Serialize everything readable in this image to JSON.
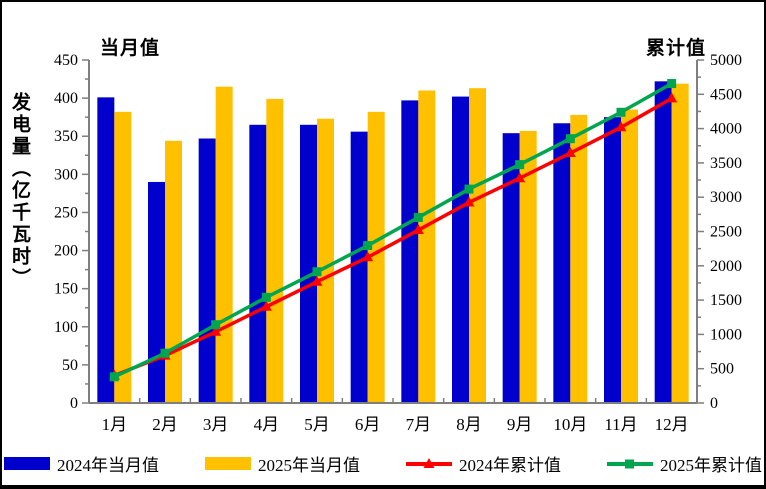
{
  "titles": {
    "left_axis_title": "当月值",
    "right_axis_title": "累计值",
    "y_axis_label": "发电量（亿千瓦时）"
  },
  "chart_data": {
    "type": "combo-bar-line",
    "title": "",
    "categories": [
      "1月",
      "2月",
      "3月",
      "4月",
      "5月",
      "6月",
      "7月",
      "8月",
      "9月",
      "10月",
      "11月",
      "12月"
    ],
    "series": [
      {
        "name": "2024年当月值",
        "kind": "bar",
        "axis": "left",
        "color": "#0000CC",
        "values": [
          401,
          290,
          347,
          365,
          365,
          356,
          397,
          402,
          354,
          367,
          375,
          422
        ]
      },
      {
        "name": "2025年当月值",
        "kind": "bar",
        "axis": "left",
        "color": "#FFC000",
        "values": [
          382,
          344,
          415,
          399,
          373,
          382,
          410,
          413,
          357,
          378,
          385,
          419
        ]
      },
      {
        "name": "2024年累计值",
        "kind": "line",
        "axis": "right",
        "color": "#FF0000",
        "marker": "triangle",
        "values": [
          401,
          691,
          1038,
          1403,
          1768,
          2124,
          2521,
          2923,
          3277,
          3644,
          4019,
          4441
        ]
      },
      {
        "name": "2025年累计值",
        "kind": "line",
        "axis": "right",
        "color": "#00A550",
        "marker": "square",
        "values": [
          382,
          726,
          1141,
          1540,
          1913,
          2295,
          2705,
          3118,
          3475,
          3853,
          4238,
          4657
        ]
      }
    ],
    "left_axis": {
      "title": "当月值",
      "min": 0,
      "max": 450,
      "major_step": 50,
      "minor_step": 25,
      "tick_labels": [
        0,
        50,
        100,
        150,
        200,
        250,
        300,
        350,
        400,
        450
      ]
    },
    "right_axis": {
      "title": "累计值",
      "min": 0,
      "max": 5000,
      "major_step": 500,
      "minor_step": 250,
      "tick_labels": [
        0,
        500,
        1000,
        1500,
        2000,
        2500,
        3000,
        3500,
        4000,
        4500,
        5000
      ]
    },
    "grid": "off",
    "legend_position": "bottom",
    "axis_color": "#7f7f7f"
  }
}
